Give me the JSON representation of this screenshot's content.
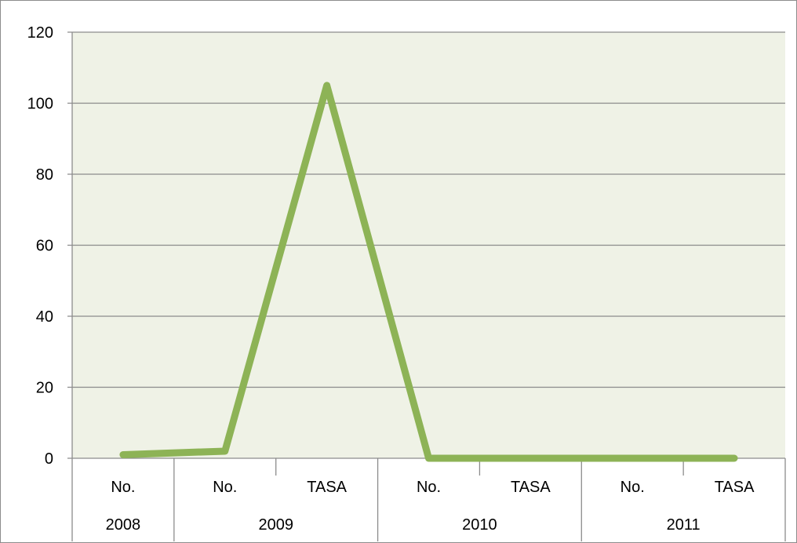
{
  "chart_data": {
    "type": "line",
    "title": "",
    "xlabel": "",
    "ylabel": "",
    "ylim": [
      0,
      120
    ],
    "yticks": [
      0,
      20,
      40,
      60,
      80,
      100,
      120
    ],
    "grid": true,
    "legend": "none",
    "categories": [
      {
        "label": "No.",
        "group": "2008"
      },
      {
        "label": "No.",
        "group": "2009"
      },
      {
        "label": "TASA",
        "group": "2009"
      },
      {
        "label": "No.",
        "group": "2010"
      },
      {
        "label": "TASA",
        "group": "2010"
      },
      {
        "label": "No.",
        "group": "2011"
      },
      {
        "label": "TASA",
        "group": "2011"
      }
    ],
    "groups": [
      "2008",
      "2009",
      "2010",
      "2011"
    ],
    "series": [
      {
        "values": [
          1,
          2,
          105,
          0,
          0,
          0,
          0
        ],
        "color": "#8db356"
      }
    ],
    "colors": {
      "plot_background": "#eff2e6",
      "gridline": "#8c8c8c",
      "line": "#8db356"
    }
  }
}
